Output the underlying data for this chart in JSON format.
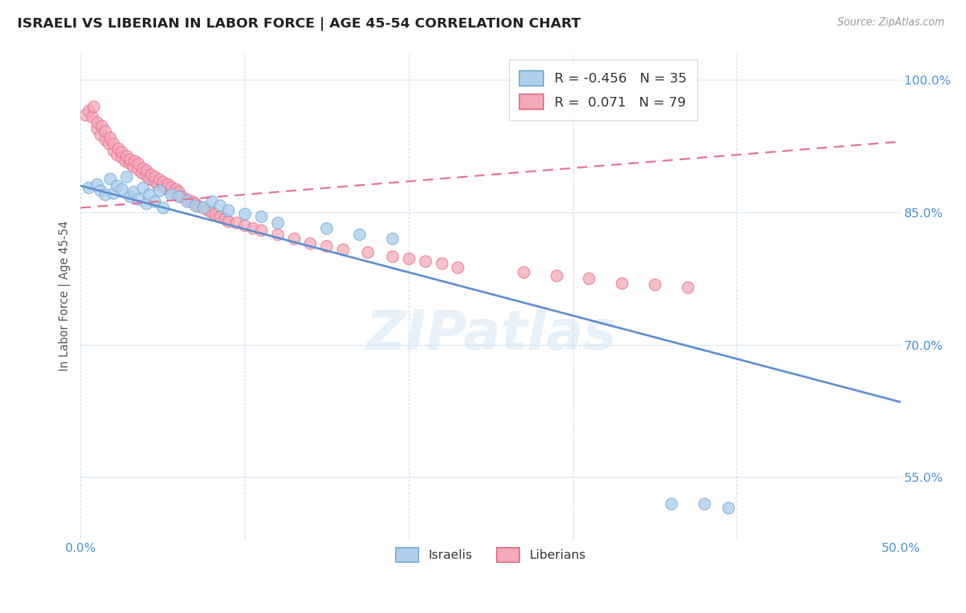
{
  "title": "ISRAELI VS LIBERIAN IN LABOR FORCE | AGE 45-54 CORRELATION CHART",
  "source_text": "Source: ZipAtlas.com",
  "ylabel": "In Labor Force | Age 45-54",
  "xlim": [
    0.0,
    0.5
  ],
  "ylim": [
    0.48,
    1.03
  ],
  "xticks": [
    0.0,
    0.1,
    0.2,
    0.3,
    0.4,
    0.5
  ],
  "xticklabels": [
    "0.0%",
    "",
    "",
    "",
    "",
    "50.0%"
  ],
  "yticks": [
    0.55,
    0.7,
    0.85,
    1.0
  ],
  "yticklabels": [
    "55.0%",
    "70.0%",
    "85.0%",
    "100.0%"
  ],
  "r_israeli": -0.456,
  "n_israeli": 35,
  "r_liberian": 0.071,
  "n_liberian": 79,
  "israeli_color": "#aecfee",
  "liberian_color": "#f5aab8",
  "israeli_edge_color": "#7aafd4",
  "liberian_edge_color": "#e87090",
  "israeli_line_color": "#5b8fd4",
  "liberian_line_color": "#e87090",
  "watermark": "ZIPatlas",
  "legend_label_israeli": "Israelis",
  "legend_label_liberian": "Liberians",
  "israeli_x": [
    0.005,
    0.01,
    0.012,
    0.015,
    0.018,
    0.02,
    0.022,
    0.025,
    0.028,
    0.03,
    0.032,
    0.035,
    0.038,
    0.04,
    0.042,
    0.045,
    0.048,
    0.05,
    0.055,
    0.06,
    0.065,
    0.07,
    0.075,
    0.08,
    0.085,
    0.09,
    0.1,
    0.11,
    0.12,
    0.15,
    0.17,
    0.19,
    0.36,
    0.38,
    0.395
  ],
  "israeli_y": [
    0.878,
    0.882,
    0.875,
    0.87,
    0.888,
    0.872,
    0.88,
    0.876,
    0.89,
    0.868,
    0.873,
    0.865,
    0.878,
    0.86,
    0.87,
    0.862,
    0.875,
    0.855,
    0.87,
    0.868,
    0.862,
    0.858,
    0.855,
    0.862,
    0.858,
    0.852,
    0.848,
    0.845,
    0.838,
    0.832,
    0.825,
    0.82,
    0.52,
    0.52,
    0.515
  ],
  "liberian_x": [
    0.003,
    0.005,
    0.007,
    0.008,
    0.01,
    0.01,
    0.012,
    0.013,
    0.015,
    0.015,
    0.017,
    0.018,
    0.02,
    0.02,
    0.022,
    0.023,
    0.025,
    0.025,
    0.027,
    0.028,
    0.03,
    0.03,
    0.032,
    0.033,
    0.035,
    0.035,
    0.037,
    0.038,
    0.04,
    0.04,
    0.042,
    0.043,
    0.045,
    0.045,
    0.047,
    0.048,
    0.05,
    0.05,
    0.052,
    0.053,
    0.055,
    0.055,
    0.057,
    0.058,
    0.06,
    0.06,
    0.062,
    0.065,
    0.068,
    0.07,
    0.072,
    0.075,
    0.078,
    0.08,
    0.082,
    0.085,
    0.088,
    0.09,
    0.095,
    0.1,
    0.105,
    0.11,
    0.12,
    0.13,
    0.14,
    0.15,
    0.16,
    0.175,
    0.19,
    0.2,
    0.21,
    0.22,
    0.23,
    0.27,
    0.29,
    0.31,
    0.33,
    0.35,
    0.37
  ],
  "liberian_y": [
    0.96,
    0.965,
    0.958,
    0.97,
    0.945,
    0.952,
    0.938,
    0.948,
    0.932,
    0.942,
    0.928,
    0.935,
    0.92,
    0.928,
    0.915,
    0.922,
    0.912,
    0.918,
    0.908,
    0.914,
    0.905,
    0.91,
    0.902,
    0.908,
    0.898,
    0.905,
    0.895,
    0.9,
    0.892,
    0.897,
    0.888,
    0.893,
    0.885,
    0.89,
    0.882,
    0.887,
    0.88,
    0.884,
    0.877,
    0.882,
    0.875,
    0.879,
    0.872,
    0.876,
    0.87,
    0.873,
    0.868,
    0.865,
    0.862,
    0.86,
    0.857,
    0.855,
    0.852,
    0.85,
    0.848,
    0.845,
    0.843,
    0.84,
    0.838,
    0.835,
    0.832,
    0.83,
    0.825,
    0.82,
    0.815,
    0.812,
    0.808,
    0.805,
    0.8,
    0.798,
    0.795,
    0.792,
    0.788,
    0.782,
    0.778,
    0.775,
    0.77,
    0.768,
    0.765
  ],
  "trend_israeli_x0": 0.0,
  "trend_israeli_y0": 0.88,
  "trend_israeli_x1": 0.5,
  "trend_israeli_y1": 0.635,
  "trend_liberian_x0": 0.0,
  "trend_liberian_y0": 0.855,
  "trend_liberian_x1": 0.5,
  "trend_liberian_y1": 0.93
}
